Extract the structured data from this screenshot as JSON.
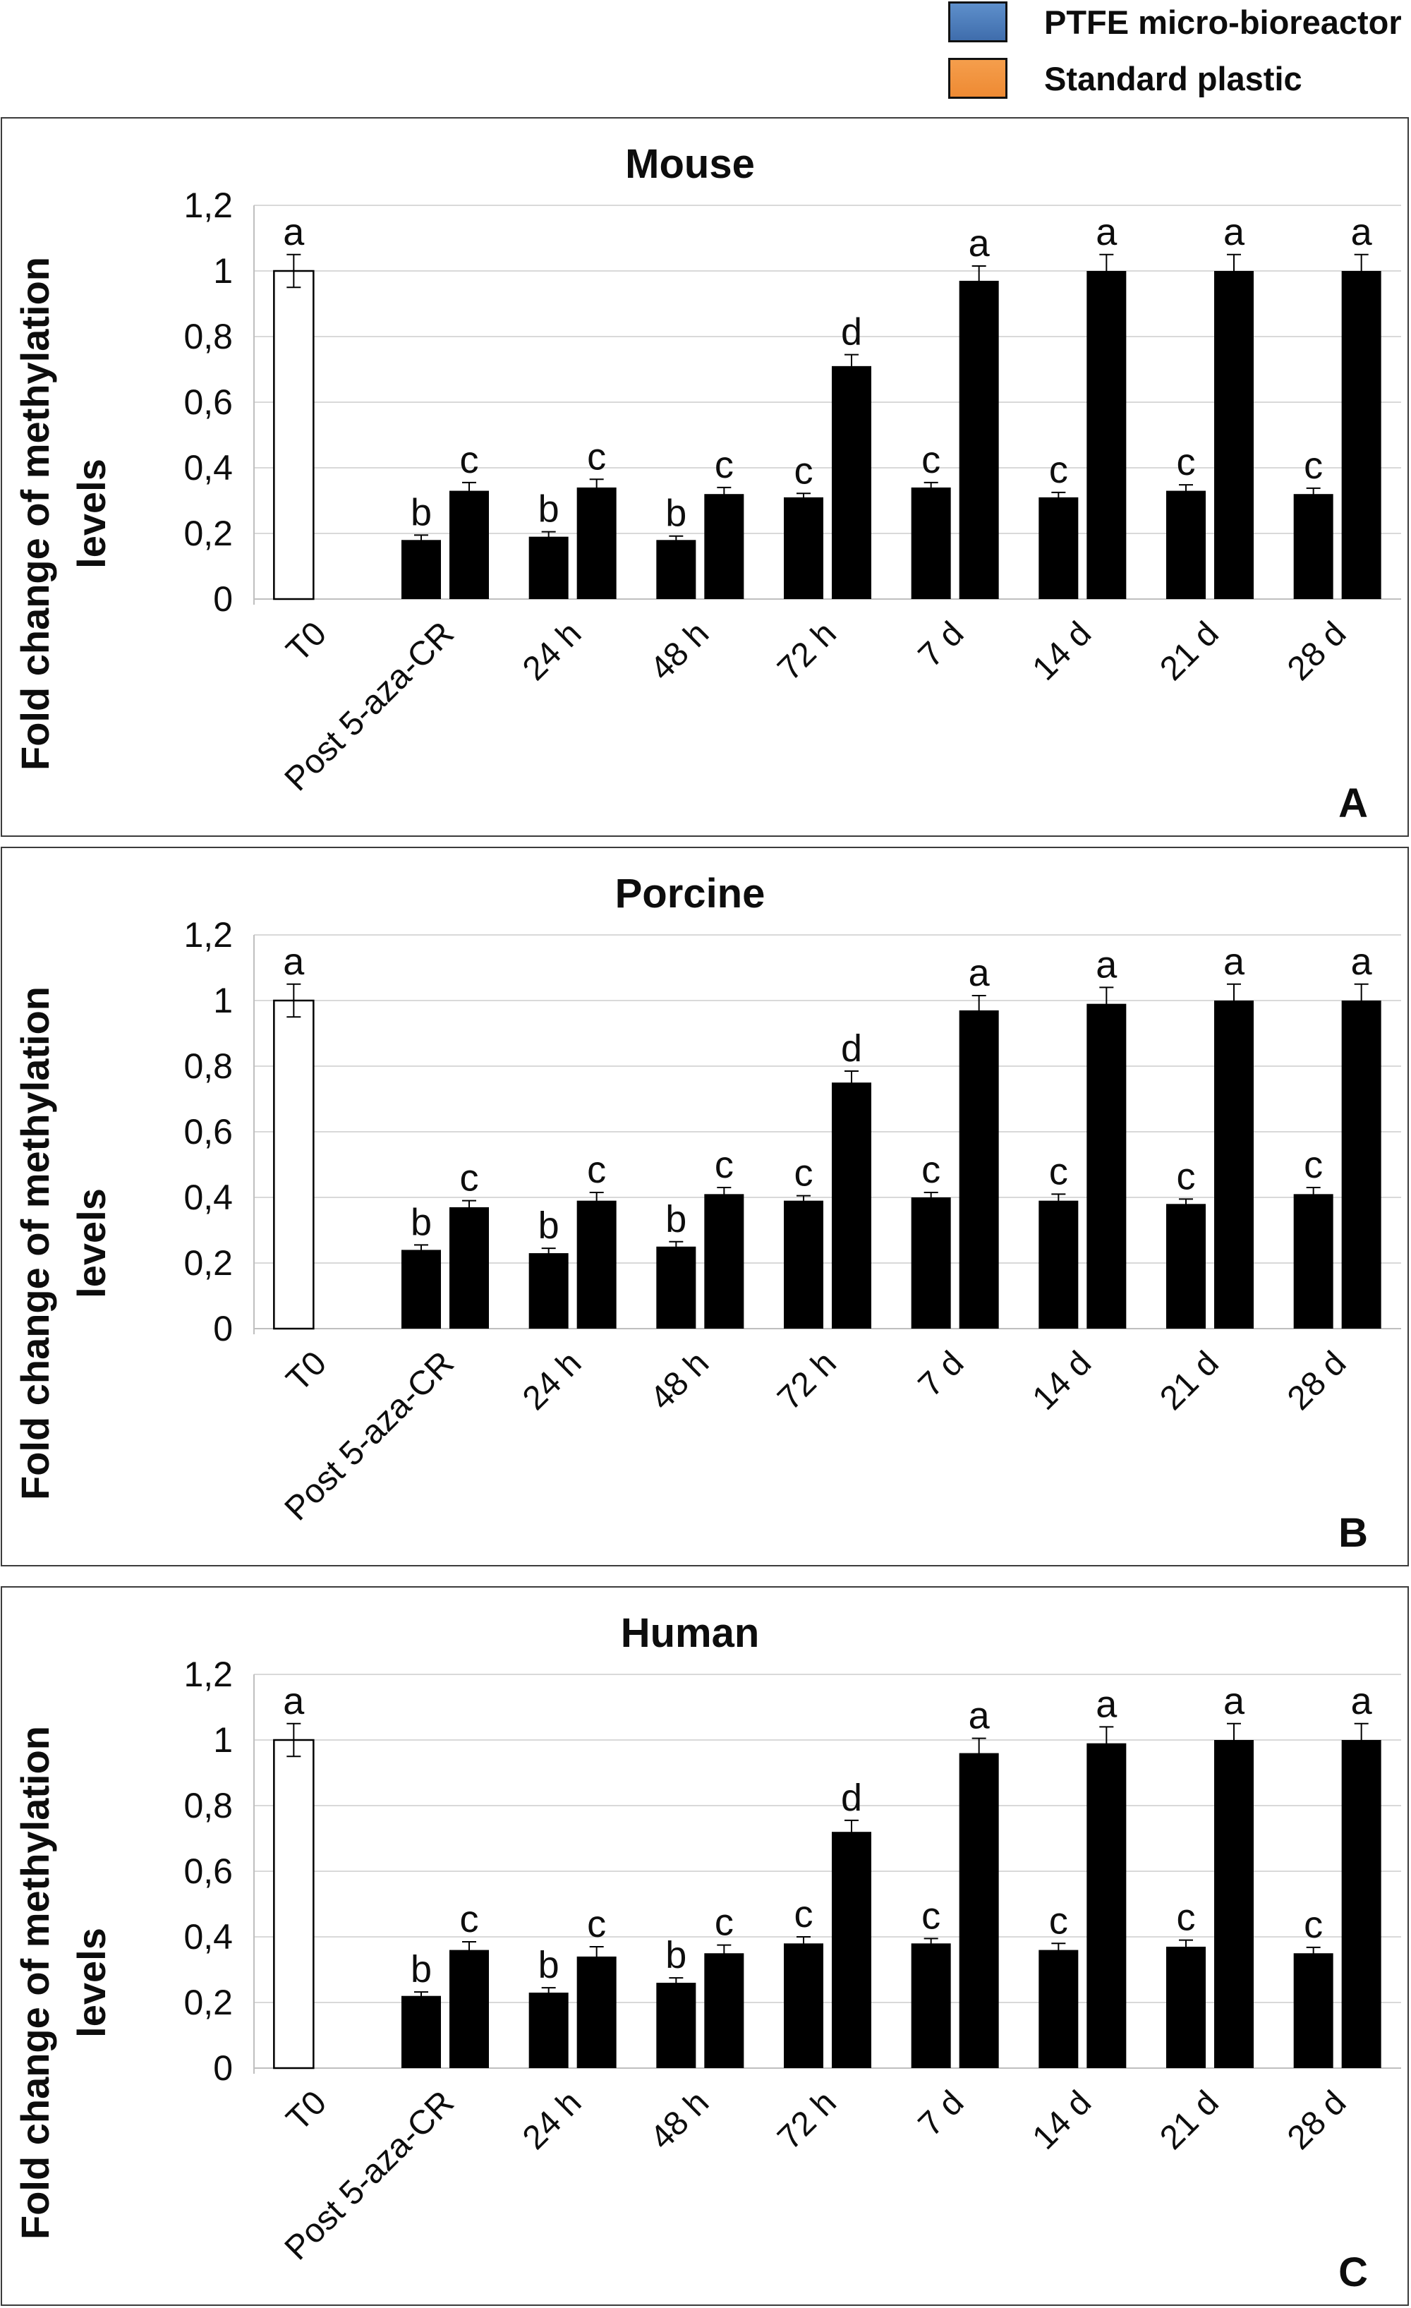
{
  "legend": {
    "items": [
      {
        "label": "PTFE micro-bioreactor",
        "color": "#4A7CBE",
        "color_top": "#5E8FCB",
        "color_bottom": "#3F6DAC"
      },
      {
        "label": "Standard plastic",
        "color": "#F2953F",
        "color_top": "#F59E4C",
        "color_bottom": "#EE8A33"
      }
    ]
  },
  "chart_data": [
    {
      "type": "bar",
      "panel_letter": "A",
      "title": "Mouse",
      "ylabel_line1": "Fold change of methylation",
      "ylabel_line2": "levels",
      "ylim": [
        0,
        1.2
      ],
      "grid": "horizontal",
      "y_ticks": [
        {
          "label": "1,2",
          "value": 1.2
        },
        {
          "label": "1",
          "value": 1.0
        },
        {
          "label": "0,8",
          "value": 0.8
        },
        {
          "label": "0,6",
          "value": 0.6
        },
        {
          "label": "0,4",
          "value": 0.4
        },
        {
          "label": "0,2",
          "value": 0.2
        },
        {
          "label": "0",
          "value": 0
        }
      ],
      "categories": [
        "T0",
        "Post 5-aza-CR",
        "24 h",
        "48 h",
        "72 h",
        "7 d",
        "14 d",
        "21 d",
        "28 d"
      ],
      "t0_bar": {
        "category": "T0",
        "value": 1.0,
        "error": 0.05,
        "letter": "a",
        "fill": "#FFFFFF",
        "border": "#000000"
      },
      "series": [
        {
          "name": "PTFE micro-bioreactor",
          "values": [
            0.18,
            0.19,
            0.18,
            0.31,
            0.34,
            0.31,
            0.33,
            0.32
          ],
          "errors": [
            0.015,
            0.015,
            0.012,
            0.012,
            0.015,
            0.015,
            0.018,
            0.018
          ],
          "letters": [
            "b",
            "b",
            "b",
            "c",
            "c",
            "c",
            "c",
            "c"
          ]
        },
        {
          "name": "Standard plastic",
          "values": [
            0.33,
            0.34,
            0.32,
            0.71,
            0.97,
            1.0,
            1.0,
            1.0
          ],
          "errors": [
            0.025,
            0.025,
            0.02,
            0.035,
            0.045,
            0.05,
            0.05,
            0.05
          ],
          "letters": [
            "c",
            "c",
            "c",
            "d",
            "a",
            "a",
            "a",
            "a"
          ]
        }
      ]
    },
    {
      "type": "bar",
      "panel_letter": "B",
      "title": "Porcine",
      "ylabel_line1": "Fold change of methylation",
      "ylabel_line2": "levels",
      "ylim": [
        0,
        1.2
      ],
      "grid": "horizontal",
      "y_ticks": [
        {
          "label": "1,2",
          "value": 1.2
        },
        {
          "label": "1",
          "value": 1.0
        },
        {
          "label": "0,8",
          "value": 0.8
        },
        {
          "label": "0,6",
          "value": 0.6
        },
        {
          "label": "0,4",
          "value": 0.4
        },
        {
          "label": "0,2",
          "value": 0.2
        },
        {
          "label": "0",
          "value": 0
        }
      ],
      "categories": [
        "T0",
        "Post 5-aza-CR",
        "24 h",
        "48 h",
        "72 h",
        "7 d",
        "14 d",
        "21 d",
        "28 d"
      ],
      "t0_bar": {
        "category": "T0",
        "value": 1.0,
        "error": 0.05,
        "letter": "a",
        "fill": "#FFFFFF",
        "border": "#000000"
      },
      "series": [
        {
          "name": "PTFE micro-bioreactor",
          "values": [
            0.24,
            0.23,
            0.25,
            0.39,
            0.4,
            0.39,
            0.38,
            0.41
          ],
          "errors": [
            0.015,
            0.015,
            0.015,
            0.015,
            0.015,
            0.02,
            0.015,
            0.02
          ],
          "letters": [
            "b",
            "b",
            "b",
            "c",
            "c",
            "c",
            "c",
            "c"
          ]
        },
        {
          "name": "Standard plastic",
          "values": [
            0.37,
            0.39,
            0.41,
            0.75,
            0.97,
            0.99,
            1.0,
            1.0
          ],
          "errors": [
            0.02,
            0.025,
            0.02,
            0.035,
            0.045,
            0.05,
            0.05,
            0.05
          ],
          "letters": [
            "c",
            "c",
            "c",
            "d",
            "a",
            "a",
            "a",
            "a"
          ]
        }
      ]
    },
    {
      "type": "bar",
      "panel_letter": "C",
      "title": "Human",
      "ylabel_line1": "Fold change of methylation",
      "ylabel_line2": "levels",
      "ylim": [
        0,
        1.2
      ],
      "grid": "horizontal",
      "y_ticks": [
        {
          "label": "1,2",
          "value": 1.2
        },
        {
          "label": "1",
          "value": 1.0
        },
        {
          "label": "0,8",
          "value": 0.8
        },
        {
          "label": "0,6",
          "value": 0.6
        },
        {
          "label": "0,4",
          "value": 0.4
        },
        {
          "label": "0,2",
          "value": 0.2
        },
        {
          "label": "0",
          "value": 0
        }
      ],
      "categories": [
        "T0",
        "Post 5-aza-CR",
        "24 h",
        "48 h",
        "72 h",
        "7 d",
        "14 d",
        "21 d",
        "28 d"
      ],
      "t0_bar": {
        "category": "T0",
        "value": 1.0,
        "error": 0.05,
        "letter": "a",
        "fill": "#FFFFFF",
        "border": "#000000"
      },
      "series": [
        {
          "name": "PTFE micro-bioreactor",
          "values": [
            0.22,
            0.23,
            0.26,
            0.38,
            0.38,
            0.36,
            0.37,
            0.35
          ],
          "errors": [
            0.012,
            0.015,
            0.015,
            0.02,
            0.015,
            0.02,
            0.02,
            0.018
          ],
          "letters": [
            "b",
            "b",
            "b",
            "c",
            "c",
            "c",
            "c",
            "c"
          ]
        },
        {
          "name": "Standard plastic",
          "values": [
            0.36,
            0.34,
            0.35,
            0.72,
            0.96,
            0.99,
            1.0,
            1.0
          ],
          "errors": [
            0.025,
            0.03,
            0.025,
            0.035,
            0.045,
            0.05,
            0.05,
            0.05
          ],
          "letters": [
            "c",
            "c",
            "c",
            "d",
            "a",
            "a",
            "a",
            "a"
          ]
        }
      ]
    }
  ]
}
